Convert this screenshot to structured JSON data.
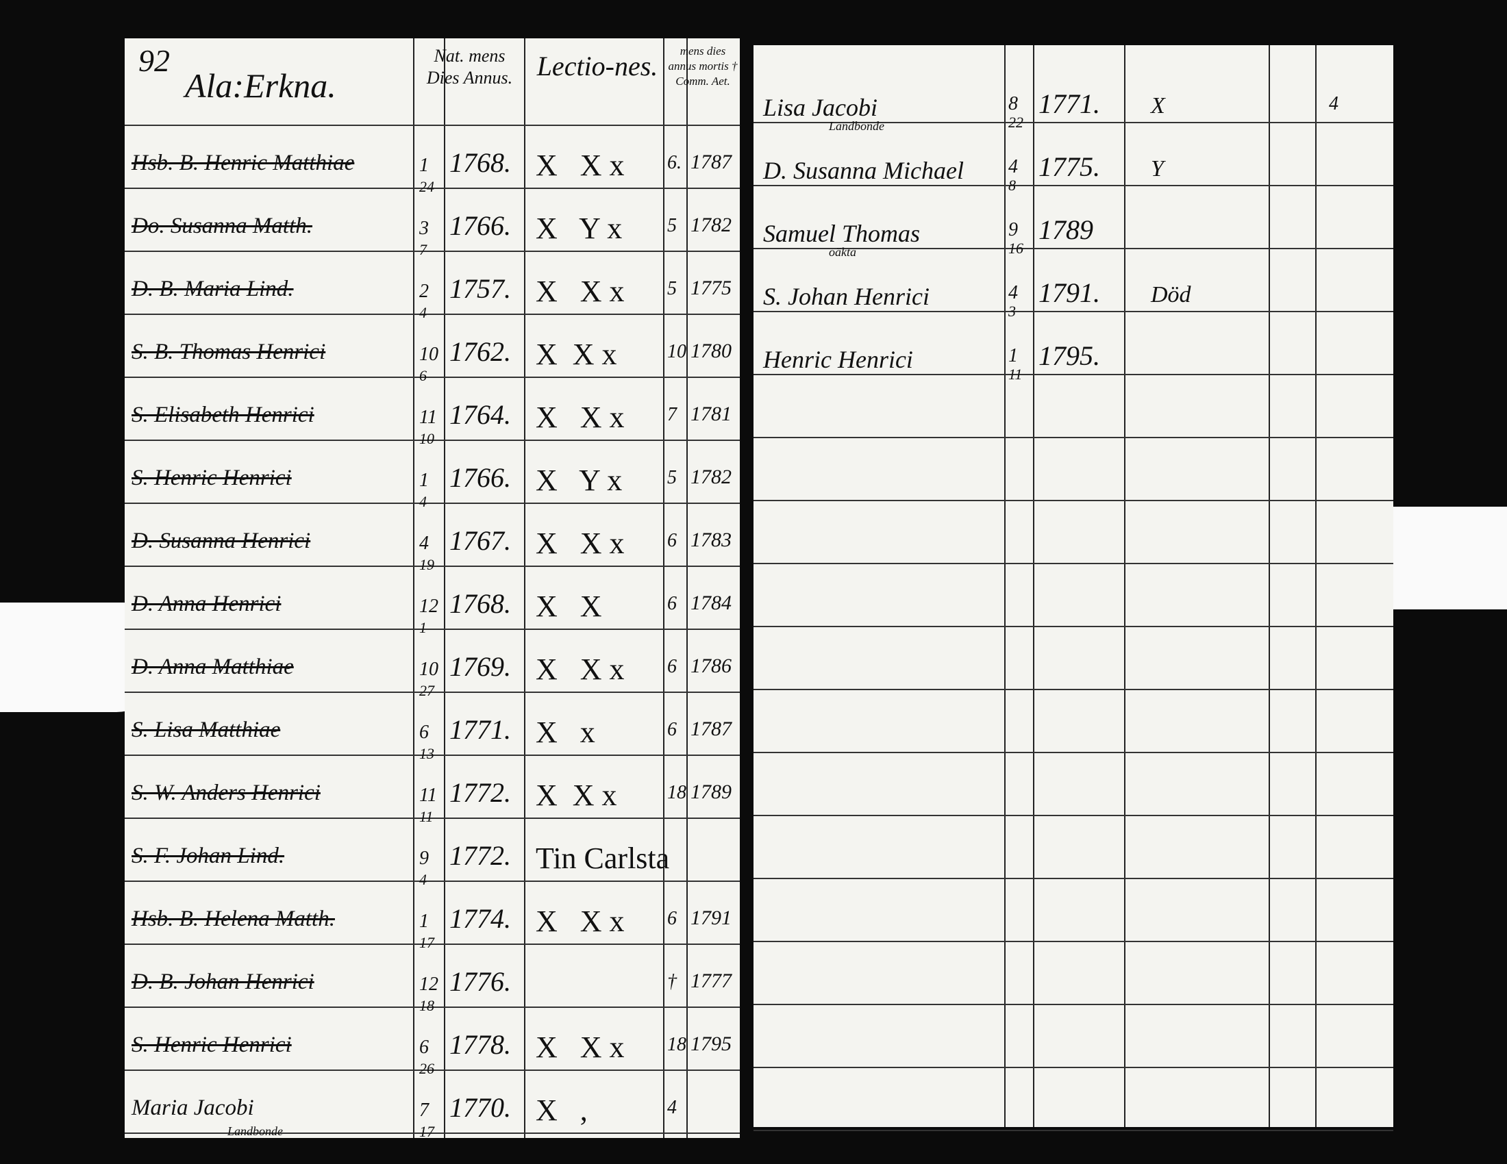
{
  "left_page": {
    "page_number": "92",
    "farm": "Ala:Erkna.",
    "headers": {
      "nat": "Nat. mens Dies Annus.",
      "lectiones": "Lectio-nes.",
      "mortis": "mens dies annus mortis † Comm. Aet."
    },
    "rows": [
      {
        "name": "Hsb. B. Henric Matthiae",
        "month": "1",
        "day": "24",
        "year": "1768.",
        "lectiones": "X   X x",
        "death_day": "6.",
        "death_year": "1787"
      },
      {
        "name": "Do. Susanna Matth.",
        "month": "3",
        "day": "7",
        "year": "1766.",
        "lectiones": "X   Y x",
        "death_day": "5",
        "death_year": "1782"
      },
      {
        "name": "D. B. Maria Lind.",
        "month": "2",
        "day": "4",
        "year": "1757.",
        "lectiones": "X   X x",
        "death_day": "5",
        "death_year": "1775"
      },
      {
        "name": "S. B. Thomas Henrici",
        "month": "10",
        "day": "6",
        "year": "1762.",
        "lectiones": "X  X x",
        "death_day": "10",
        "death_year": "1780"
      },
      {
        "name": "S. Elisabeth Henrici",
        "month": "11",
        "day": "10",
        "year": "1764.",
        "lectiones": "X   X x",
        "death_day": "7",
        "death_year": "1781"
      },
      {
        "name": "S. Henric Henrici",
        "month": "1",
        "day": "4",
        "year": "1766.",
        "lectiones": "X   Y x",
        "death_day": "5",
        "death_year": "1782"
      },
      {
        "name": "D. Susanna Henrici",
        "month": "4",
        "day": "19",
        "year": "1767.",
        "lectiones": "X   X x",
        "death_day": "6",
        "death_year": "1783"
      },
      {
        "name": "D. Anna Henrici",
        "month": "12",
        "day": "1",
        "year": "1768.",
        "lectiones": "X   X",
        "death_day": "6",
        "death_year": "1784"
      },
      {
        "name": "D. Anna Matthiae",
        "month": "10",
        "day": "27",
        "year": "1769.",
        "lectiones": "X   X x",
        "death_day": "6",
        "death_year": "1786"
      },
      {
        "name": "S. Lisa Matthiae",
        "month": "6",
        "day": "13",
        "year": "1771.",
        "lectiones": "X   x",
        "death_day": "6",
        "death_year": "1787"
      },
      {
        "name": "S. W. Anders Henrici",
        "month": "11",
        "day": "11",
        "year": "1772.",
        "lectiones": "X  X x",
        "death_day": "18",
        "death_year": "1789"
      },
      {
        "name": "S. F. Johan Lind.",
        "month": "9",
        "day": "4",
        "year": "1772.",
        "lectiones": "Tin Carlsta"
      },
      {
        "name": "Hsb. B. Helena Matth.",
        "month": "1",
        "day": "17",
        "year": "1774.",
        "lectiones": "X   X x",
        "death_day": "6",
        "death_year": "1791"
      },
      {
        "name": "D. B. Johan Henrici",
        "month": "12",
        "day": "18",
        "year": "1776.",
        "death_day": "†",
        "death_year": "1777"
      },
      {
        "name": "S. Henric Henrici",
        "month": "6",
        "day": "26",
        "year": "1778.",
        "lectiones": "X   X x",
        "death_day": "18",
        "death_year": "1795"
      },
      {
        "name": "Maria Jacobi",
        "note": "Landbonde",
        "month": "7",
        "day": "17",
        "year": "1770.",
        "lectiones": "X   ,",
        "death_day": "4"
      }
    ]
  },
  "right_page": {
    "rows": [
      {
        "name": "Lisa Jacobi",
        "note": "Landbonde",
        "month": "8",
        "day": "22",
        "year": "1771.",
        "lectiones": "X",
        "remark": "4"
      },
      {
        "name": "D. Susanna Michael",
        "month": "4",
        "day": "8",
        "year": "1775.",
        "lectiones": "Y"
      },
      {
        "name": "Samuel Thomas",
        "note": "oäkta",
        "month": "9",
        "day": "16",
        "year": "1789"
      },
      {
        "name": "S. Johan Henrici",
        "month": "4",
        "day": "3",
        "year": "1791.",
        "lectiones": "Död"
      },
      {
        "name": "Henric Henrici",
        "month": "1",
        "day": "11",
        "year": "1795."
      }
    ]
  }
}
